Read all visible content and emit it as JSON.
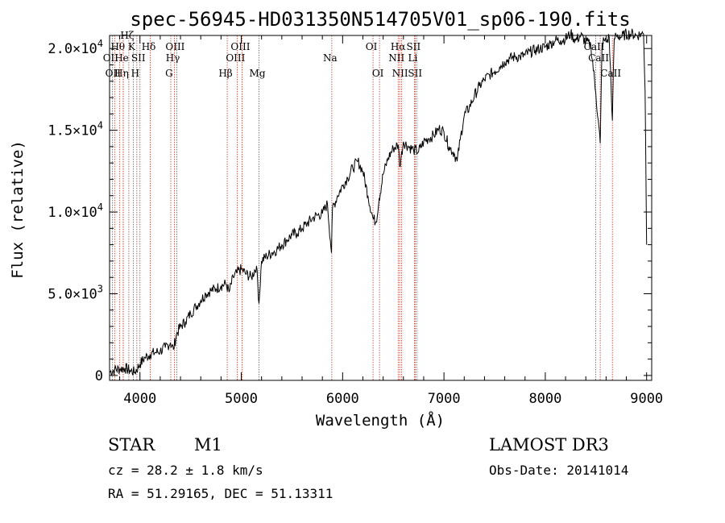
{
  "chart_data": {
    "type": "line",
    "title": "spec-56945-HD031350N514705V01_sp06-190.fits",
    "xlabel": "Wavelength (Å)",
    "ylabel": "Flux (relative)",
    "xlim": [
      3700,
      9050
    ],
    "ylim": [
      -300,
      20800
    ],
    "x_ticks": [
      4000,
      5000,
      6000,
      7000,
      8000,
      9000
    ],
    "x_tick_labels": [
      "4000",
      "5000",
      "6000",
      "7000",
      "8000",
      "9000"
    ],
    "y_ticks": [
      0,
      5000,
      10000,
      15000,
      20000
    ],
    "y_tick_labels": [
      {
        "mantissa": "0",
        "exp": ""
      },
      {
        "mantissa": "5.0×10",
        "exp": "3"
      },
      {
        "mantissa": "1.0×10",
        "exp": "4"
      },
      {
        "mantissa": "1.5×10",
        "exp": "4"
      },
      {
        "mantissa": "2.0×10",
        "exp": "4"
      }
    ],
    "series": [
      {
        "name": "flux",
        "x": [
          3700,
          3750,
          3800,
          3850,
          3900,
          3950,
          4000,
          4050,
          4100,
          4150,
          4200,
          4250,
          4300,
          4330,
          4360,
          4400,
          4450,
          4500,
          4550,
          4600,
          4650,
          4700,
          4750,
          4800,
          4850,
          4880,
          4920,
          4960,
          5000,
          5050,
          5100,
          5150,
          5175,
          5200,
          5250,
          5300,
          5350,
          5400,
          5450,
          5500,
          5550,
          5600,
          5650,
          5700,
          5750,
          5800,
          5850,
          5890,
          5900,
          5950,
          6000,
          6050,
          6100,
          6150,
          6200,
          6250,
          6300,
          6330,
          6360,
          6400,
          6450,
          6500,
          6550,
          6563,
          6600,
          6650,
          6700,
          6750,
          6800,
          6850,
          6900,
          6950,
          7000,
          7050,
          7100,
          7130,
          7160,
          7200,
          7250,
          7300,
          7350,
          7400,
          7450,
          7500,
          7550,
          7600,
          7650,
          7700,
          7750,
          7800,
          7850,
          7900,
          7950,
          8000,
          8050,
          8100,
          8150,
          8200,
          8250,
          8300,
          8350,
          8400,
          8450,
          8498,
          8542,
          8560,
          8580,
          8600,
          8630,
          8662,
          8680,
          8700,
          8750,
          8800,
          8850,
          8900,
          8950,
          8970,
          8985,
          9000
        ],
        "values": [
          200,
          350,
          400,
          450,
          300,
          200,
          700,
          1100,
          1300,
          1400,
          1500,
          1700,
          2000,
          1600,
          2500,
          3000,
          3300,
          3800,
          4200,
          4600,
          5000,
          5200,
          5300,
          5500,
          5600,
          5100,
          6000,
          6300,
          6500,
          6200,
          6000,
          6700,
          4400,
          7000,
          7300,
          7500,
          7700,
          8000,
          8300,
          8600,
          8700,
          9000,
          9300,
          9600,
          9800,
          9900,
          10500,
          7500,
          10200,
          11000,
          11600,
          12100,
          12700,
          13100,
          12500,
          11000,
          9600,
          9400,
          10800,
          12300,
          13300,
          13900,
          14100,
          12800,
          14300,
          14000,
          13800,
          13700,
          14300,
          14500,
          14700,
          15100,
          14900,
          14000,
          13600,
          13100,
          14400,
          15900,
          16400,
          17100,
          17700,
          18100,
          18400,
          18600,
          18900,
          19200,
          19400,
          19500,
          19500,
          19600,
          19800,
          19900,
          20000,
          20100,
          20300,
          20500,
          20500,
          20600,
          20900,
          20500,
          20800,
          20400,
          20200,
          17300,
          14200,
          20300,
          20500,
          20400,
          20700,
          15600,
          20600,
          20800,
          20700,
          20900,
          20900,
          20800,
          20900,
          20900,
          17400,
          8000
        ]
      }
    ],
    "line_markers": [
      {
        "w": 3727,
        "label": "OII",
        "row": 2
      },
      {
        "w": 3750,
        "label": "OII",
        "row": 3
      },
      {
        "w": 3798,
        "label": "Hθ",
        "row": 1
      },
      {
        "w": 3835,
        "label": "He",
        "row": 2
      },
      {
        "w": 3835,
        "label": "Hη",
        "row": 3
      },
      {
        "w": 3890,
        "label": "Hζ",
        "row": 0
      },
      {
        "w": 3934,
        "label": "K",
        "row": 1
      },
      {
        "w": 3969,
        "label": "H",
        "row": 3
      },
      {
        "w": 4000,
        "label": "SII",
        "row": 2
      },
      {
        "w": 4102,
        "label": "Hδ",
        "row": 1
      },
      {
        "w": 4340,
        "label": "Hγ",
        "row": 2
      },
      {
        "w": 4304,
        "label": "G",
        "row": 3
      },
      {
        "w": 4363,
        "label": "OIII",
        "row": 1
      },
      {
        "w": 4861,
        "label": "Hβ",
        "row": 3
      },
      {
        "w": 4959,
        "label": "OIII",
        "row": 2
      },
      {
        "w": 5007,
        "label": "OIII",
        "row": 1
      },
      {
        "w": 5175,
        "label": "Mg",
        "row": 3
      },
      {
        "w": 5893,
        "label": "Na",
        "row": 2
      },
      {
        "w": 6300,
        "label": "OI",
        "row": 1
      },
      {
        "w": 6364,
        "label": "OI",
        "row": 3
      },
      {
        "w": 6548,
        "label": "NII",
        "row": 2
      },
      {
        "w": 6563,
        "label": "Hα",
        "row": 1
      },
      {
        "w": 6583,
        "label": "NII",
        "row": 3
      },
      {
        "w": 6708,
        "label": "Li",
        "row": 2
      },
      {
        "w": 6716,
        "label": "SII",
        "row": 1
      },
      {
        "w": 6731,
        "label": "SII",
        "row": 3
      },
      {
        "w": 8498,
        "label": "CaII",
        "row": 1
      },
      {
        "w": 8542,
        "label": "CaII",
        "row": 2
      },
      {
        "w": 8662,
        "label": "CaII",
        "row": 3
      }
    ]
  },
  "info": {
    "obj_class": "STAR",
    "subclass": "M1",
    "survey": "LAMOST DR3",
    "cz": "cz = 28.2 ± 1.8 km/s",
    "obs_date": "Obs-Date: 20141014",
    "coords": "RA =  51.29165, DEC =  51.13311"
  }
}
